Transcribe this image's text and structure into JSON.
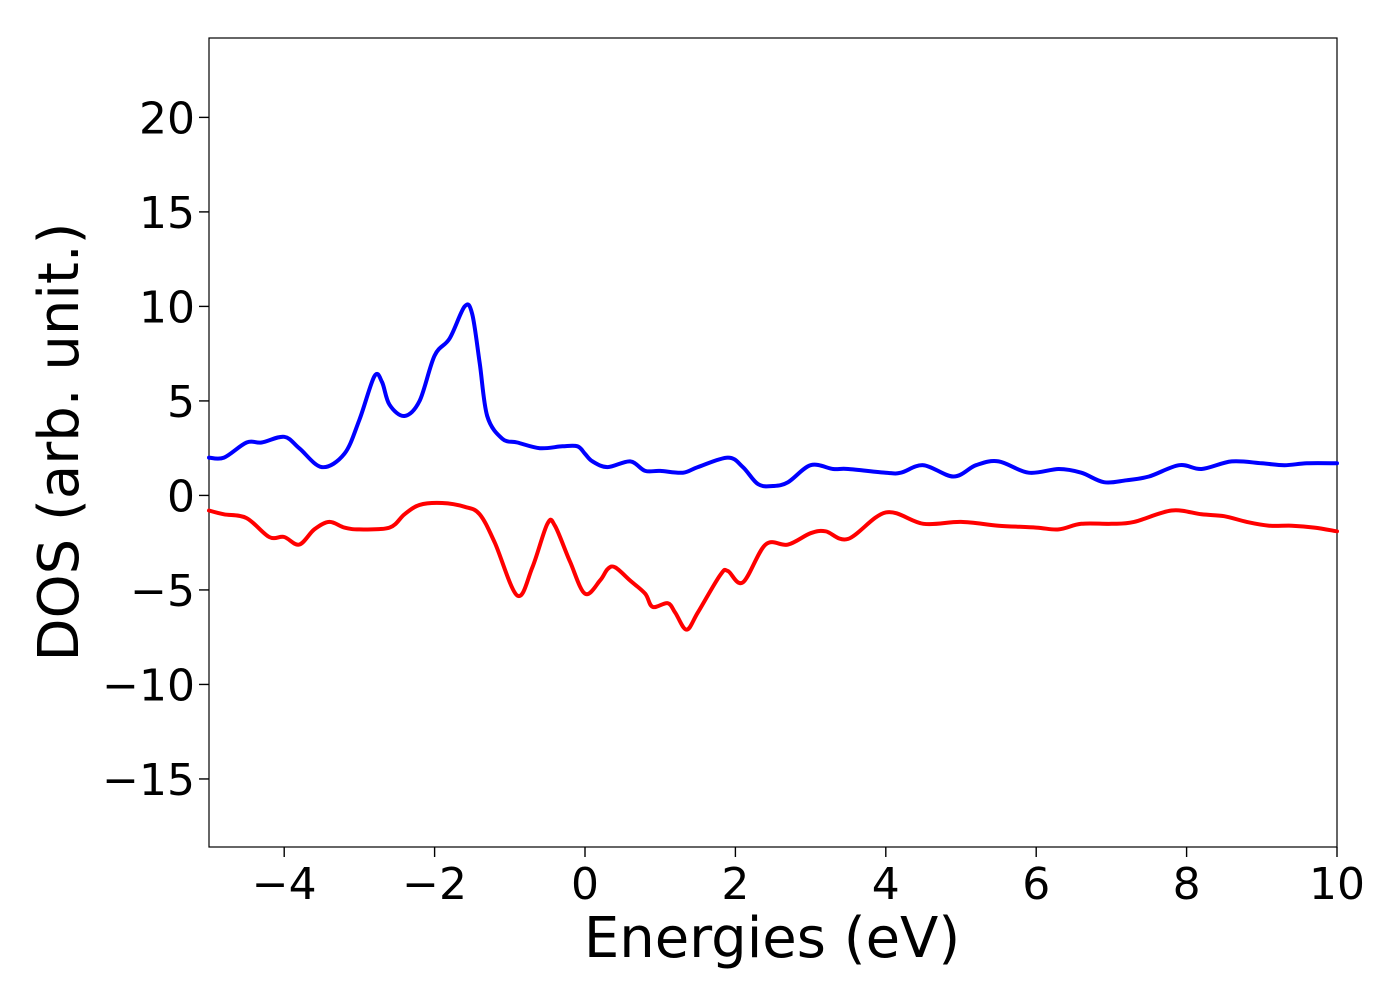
{
  "chart_data": {
    "type": "line",
    "title": "",
    "xlabel": "Energies (eV)",
    "ylabel": "DOS (arb. unit.)",
    "xlim": [
      -5,
      10
    ],
    "ylim": [
      -18.6,
      24.2
    ],
    "xticks": [
      -4,
      -2,
      0,
      2,
      4,
      6,
      8,
      10
    ],
    "xtick_labels": [
      "−4",
      "−2",
      "0",
      "2",
      "4",
      "6",
      "8",
      "10"
    ],
    "yticks": [
      -15,
      -10,
      -5,
      0,
      5,
      10,
      15,
      20
    ],
    "ytick_labels": [
      "−15",
      "−10",
      "−5",
      "0",
      "5",
      "10",
      "15",
      "20"
    ],
    "grid": false,
    "series": [
      {
        "color": "#0000ff",
        "x": [
          -5.0,
          -4.8,
          -4.5,
          -4.3,
          -4.0,
          -3.8,
          -3.5,
          -3.2,
          -3.0,
          -2.8,
          -2.7,
          -2.6,
          -2.4,
          -2.2,
          -2.0,
          -1.8,
          -1.6,
          -1.5,
          -1.4,
          -1.3,
          -1.1,
          -0.9,
          -0.6,
          -0.3,
          -0.1,
          0.0,
          0.1,
          0.3,
          0.6,
          0.8,
          1.0,
          1.3,
          1.5,
          1.9,
          2.1,
          2.3,
          2.5,
          2.7,
          3.0,
          3.3,
          3.5,
          4.0,
          4.2,
          4.5,
          4.9,
          5.2,
          5.5,
          5.9,
          6.3,
          6.6,
          6.9,
          7.2,
          7.5,
          7.9,
          8.2,
          8.6,
          9.0,
          9.3,
          9.6,
          10.0
        ],
        "values": [
          2.0,
          2.0,
          2.8,
          2.8,
          3.1,
          2.5,
          1.5,
          2.2,
          4.0,
          6.3,
          6.0,
          4.8,
          4.2,
          5.0,
          7.4,
          8.3,
          10.0,
          9.6,
          7.0,
          4.2,
          3.0,
          2.8,
          2.5,
          2.6,
          2.6,
          2.2,
          1.8,
          1.5,
          1.8,
          1.3,
          1.3,
          1.2,
          1.5,
          2.0,
          1.5,
          0.6,
          0.5,
          0.7,
          1.6,
          1.4,
          1.4,
          1.2,
          1.2,
          1.6,
          1.0,
          1.6,
          1.8,
          1.2,
          1.4,
          1.2,
          0.7,
          0.8,
          1.0,
          1.6,
          1.4,
          1.8,
          1.7,
          1.6,
          1.7,
          1.7
        ]
      },
      {
        "color": "#ff0000",
        "x": [
          -5.0,
          -4.8,
          -4.5,
          -4.2,
          -4.0,
          -3.8,
          -3.6,
          -3.4,
          -3.2,
          -3.0,
          -2.6,
          -2.4,
          -2.2,
          -1.9,
          -1.6,
          -1.4,
          -1.2,
          -0.9,
          -0.7,
          -0.5,
          -0.4,
          -0.2,
          0.0,
          0.2,
          0.3,
          0.4,
          0.6,
          0.8,
          0.9,
          1.1,
          1.2,
          1.35,
          1.5,
          1.8,
          1.9,
          2.1,
          2.4,
          2.7,
          3.0,
          3.2,
          3.5,
          4.0,
          4.5,
          5.0,
          5.5,
          6.0,
          6.3,
          6.6,
          7.0,
          7.3,
          7.8,
          8.2,
          8.5,
          8.8,
          9.1,
          9.4,
          9.7,
          10.0
        ],
        "values": [
          -0.8,
          -1.0,
          -1.2,
          -2.2,
          -2.2,
          -2.6,
          -1.8,
          -1.4,
          -1.7,
          -1.8,
          -1.7,
          -1.0,
          -0.5,
          -0.4,
          -0.6,
          -1.0,
          -2.5,
          -5.3,
          -3.8,
          -1.5,
          -1.6,
          -3.5,
          -5.2,
          -4.5,
          -3.9,
          -3.8,
          -4.5,
          -5.2,
          -5.9,
          -5.7,
          -6.2,
          -7.1,
          -6.2,
          -4.2,
          -4.0,
          -4.6,
          -2.6,
          -2.6,
          -2.0,
          -1.9,
          -2.3,
          -0.9,
          -1.5,
          -1.4,
          -1.6,
          -1.7,
          -1.8,
          -1.5,
          -1.5,
          -1.4,
          -0.8,
          -1.0,
          -1.1,
          -1.4,
          -1.6,
          -1.6,
          -1.7,
          -1.9
        ]
      }
    ]
  }
}
